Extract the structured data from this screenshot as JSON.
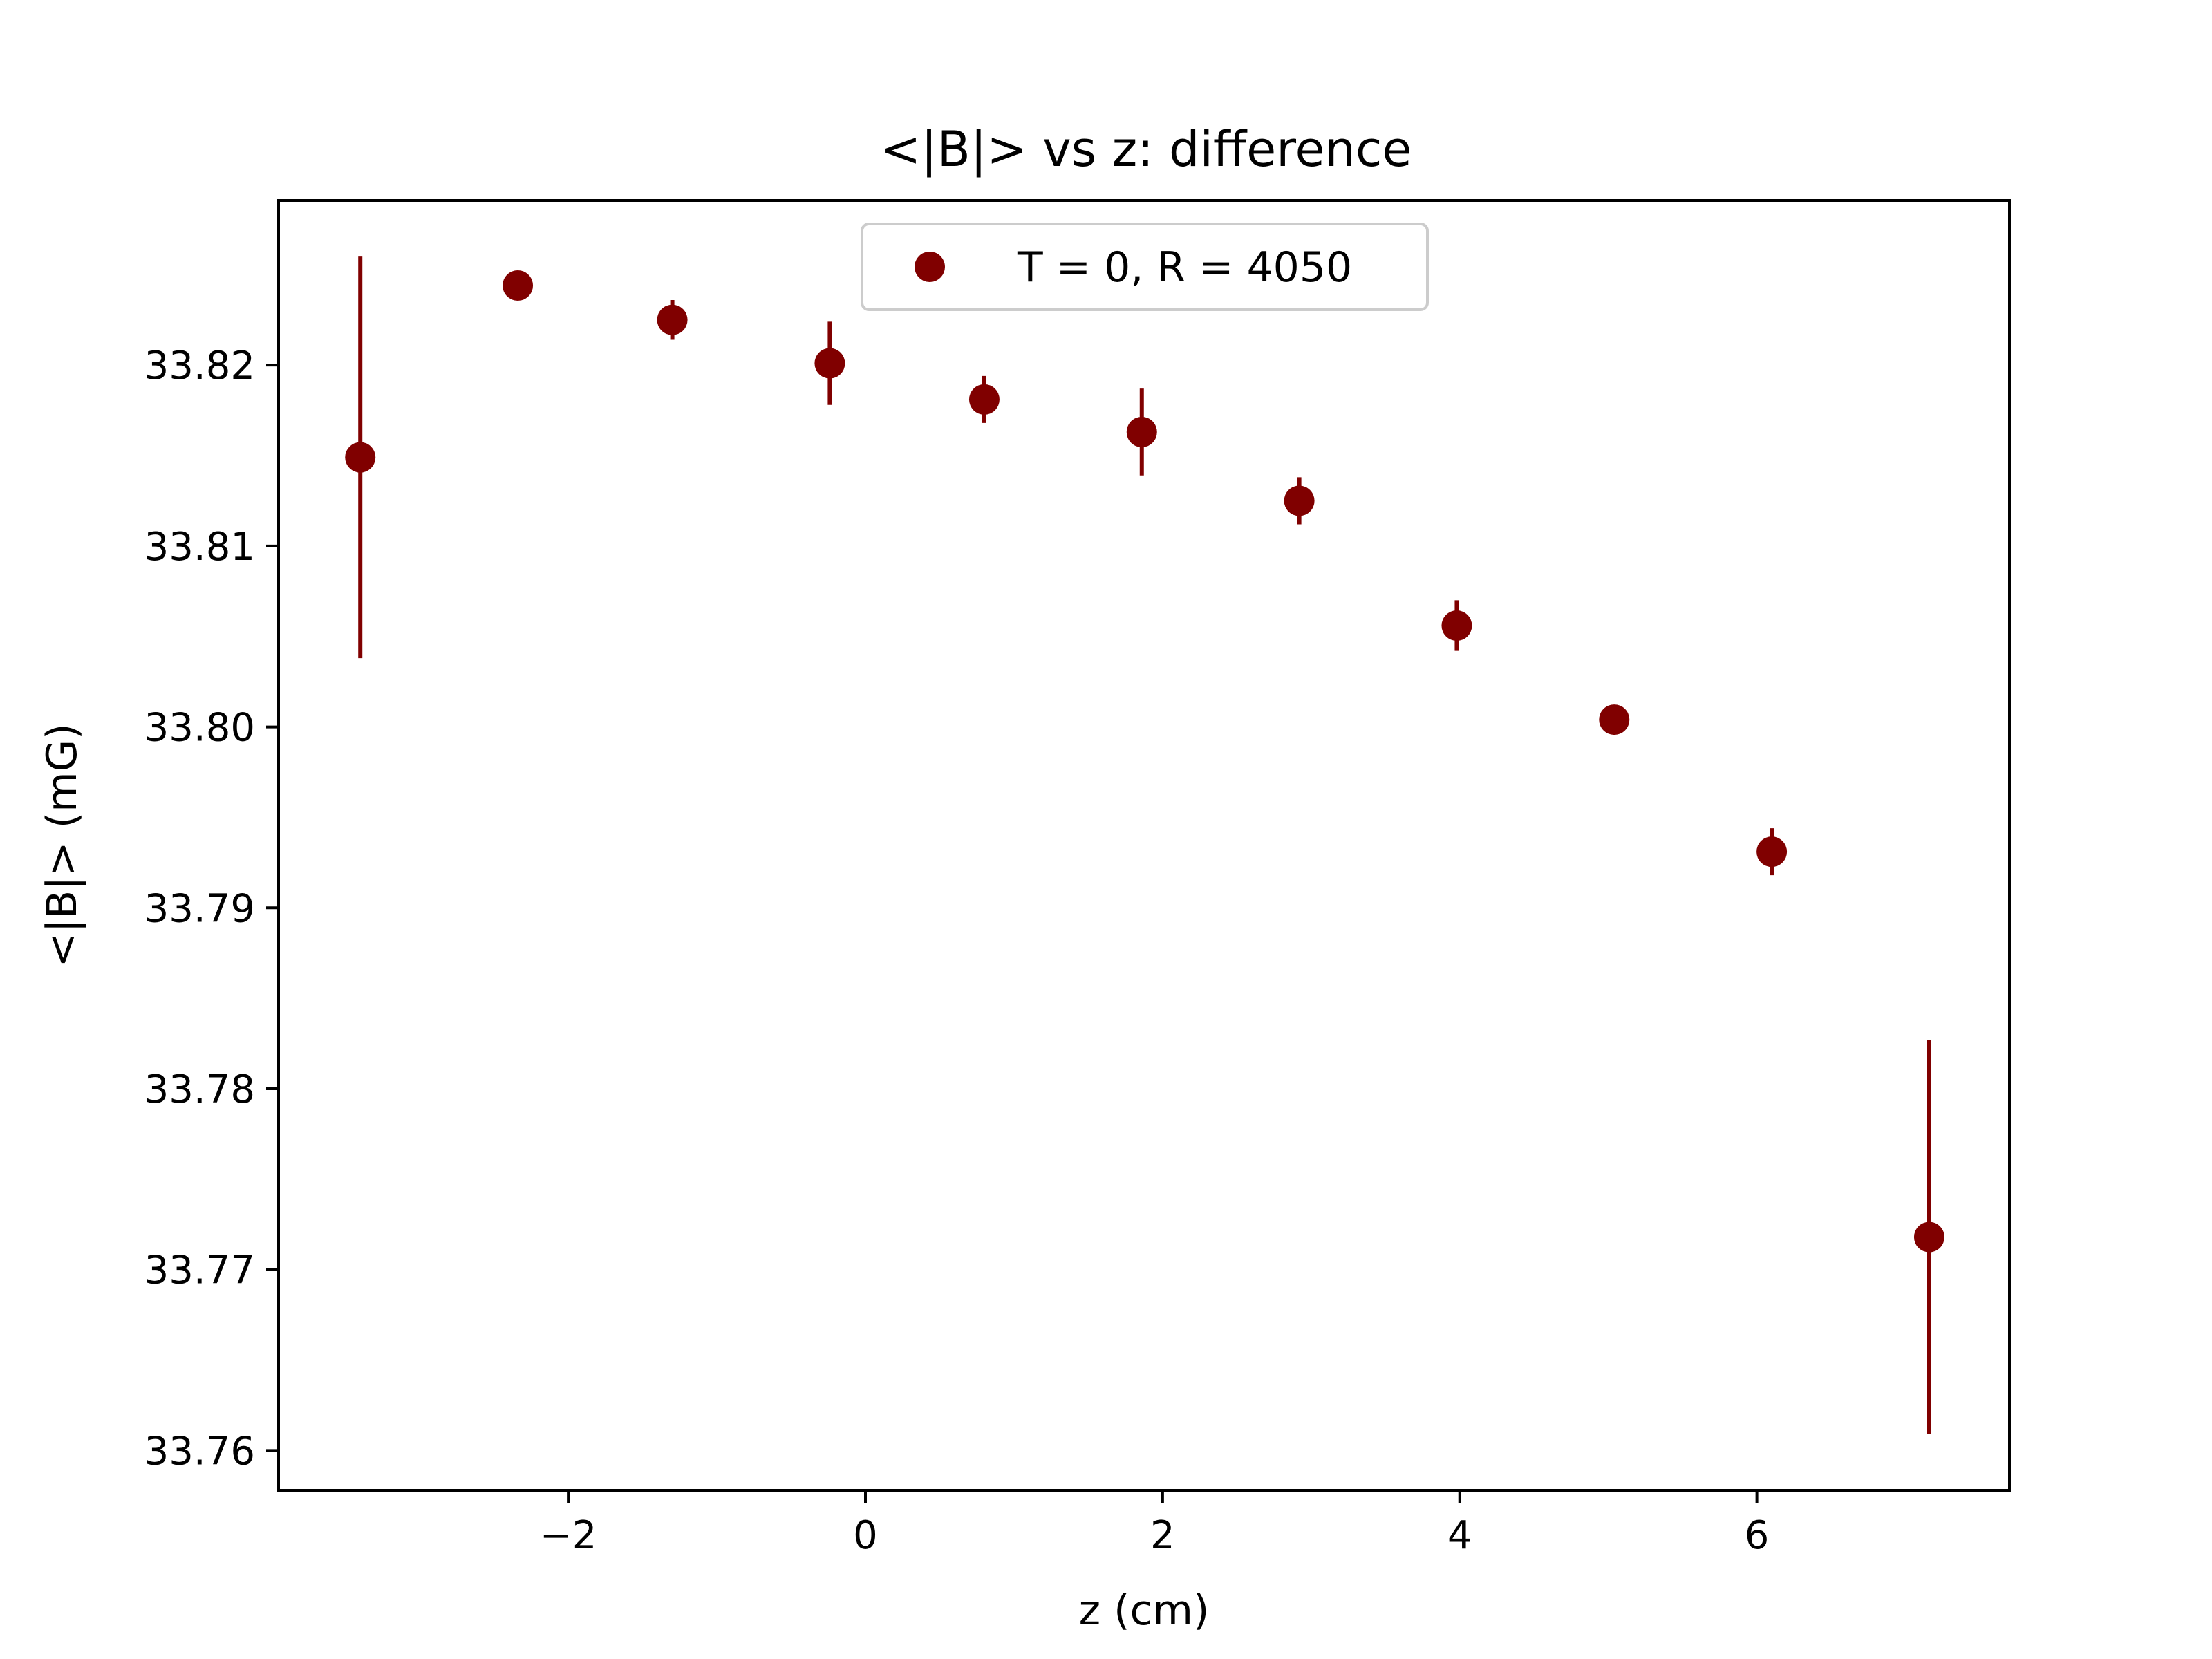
{
  "colors": {
    "series": "#800000",
    "axes": "#000000",
    "background": "#ffffff",
    "legend_border": "#cccccc"
  },
  "chart_data": {
    "type": "scatter",
    "title": "<|B|> vs z: difference",
    "xlabel": "z (cm)",
    "ylabel": "<|B|> (mG)",
    "xlim": [
      -3.95,
      7.7
    ],
    "ylim": [
      33.7578,
      33.8291
    ],
    "xticks": [
      -2,
      0,
      2,
      4,
      6
    ],
    "xtick_labels": [
      "−2",
      "0",
      "2",
      "4",
      "6"
    ],
    "yticks": [
      33.76,
      33.77,
      33.78,
      33.79,
      33.8,
      33.81,
      33.82
    ],
    "ytick_labels": [
      "33.76",
      "33.77",
      "33.78",
      "33.79",
      "33.80",
      "33.81",
      "33.82"
    ],
    "grid": false,
    "legend": {
      "position": "upper center"
    },
    "series": [
      {
        "name": "T = 0, R = 4050",
        "color": "#800000",
        "x": [
          -3.4,
          -2.34,
          -1.3,
          -0.24,
          0.8,
          1.86,
          2.92,
          3.98,
          5.04,
          6.1,
          7.16
        ],
        "y": [
          33.8149,
          33.8244,
          33.8225,
          33.8201,
          33.8181,
          33.8163,
          33.8125,
          33.8056,
          33.8004,
          33.7931,
          33.7718
        ],
        "err": [
          0.0111,
          0.0,
          0.0011,
          0.0023,
          0.0013,
          0.0024,
          0.0013,
          0.0014,
          0.0,
          0.0013,
          0.0109
        ]
      }
    ]
  }
}
